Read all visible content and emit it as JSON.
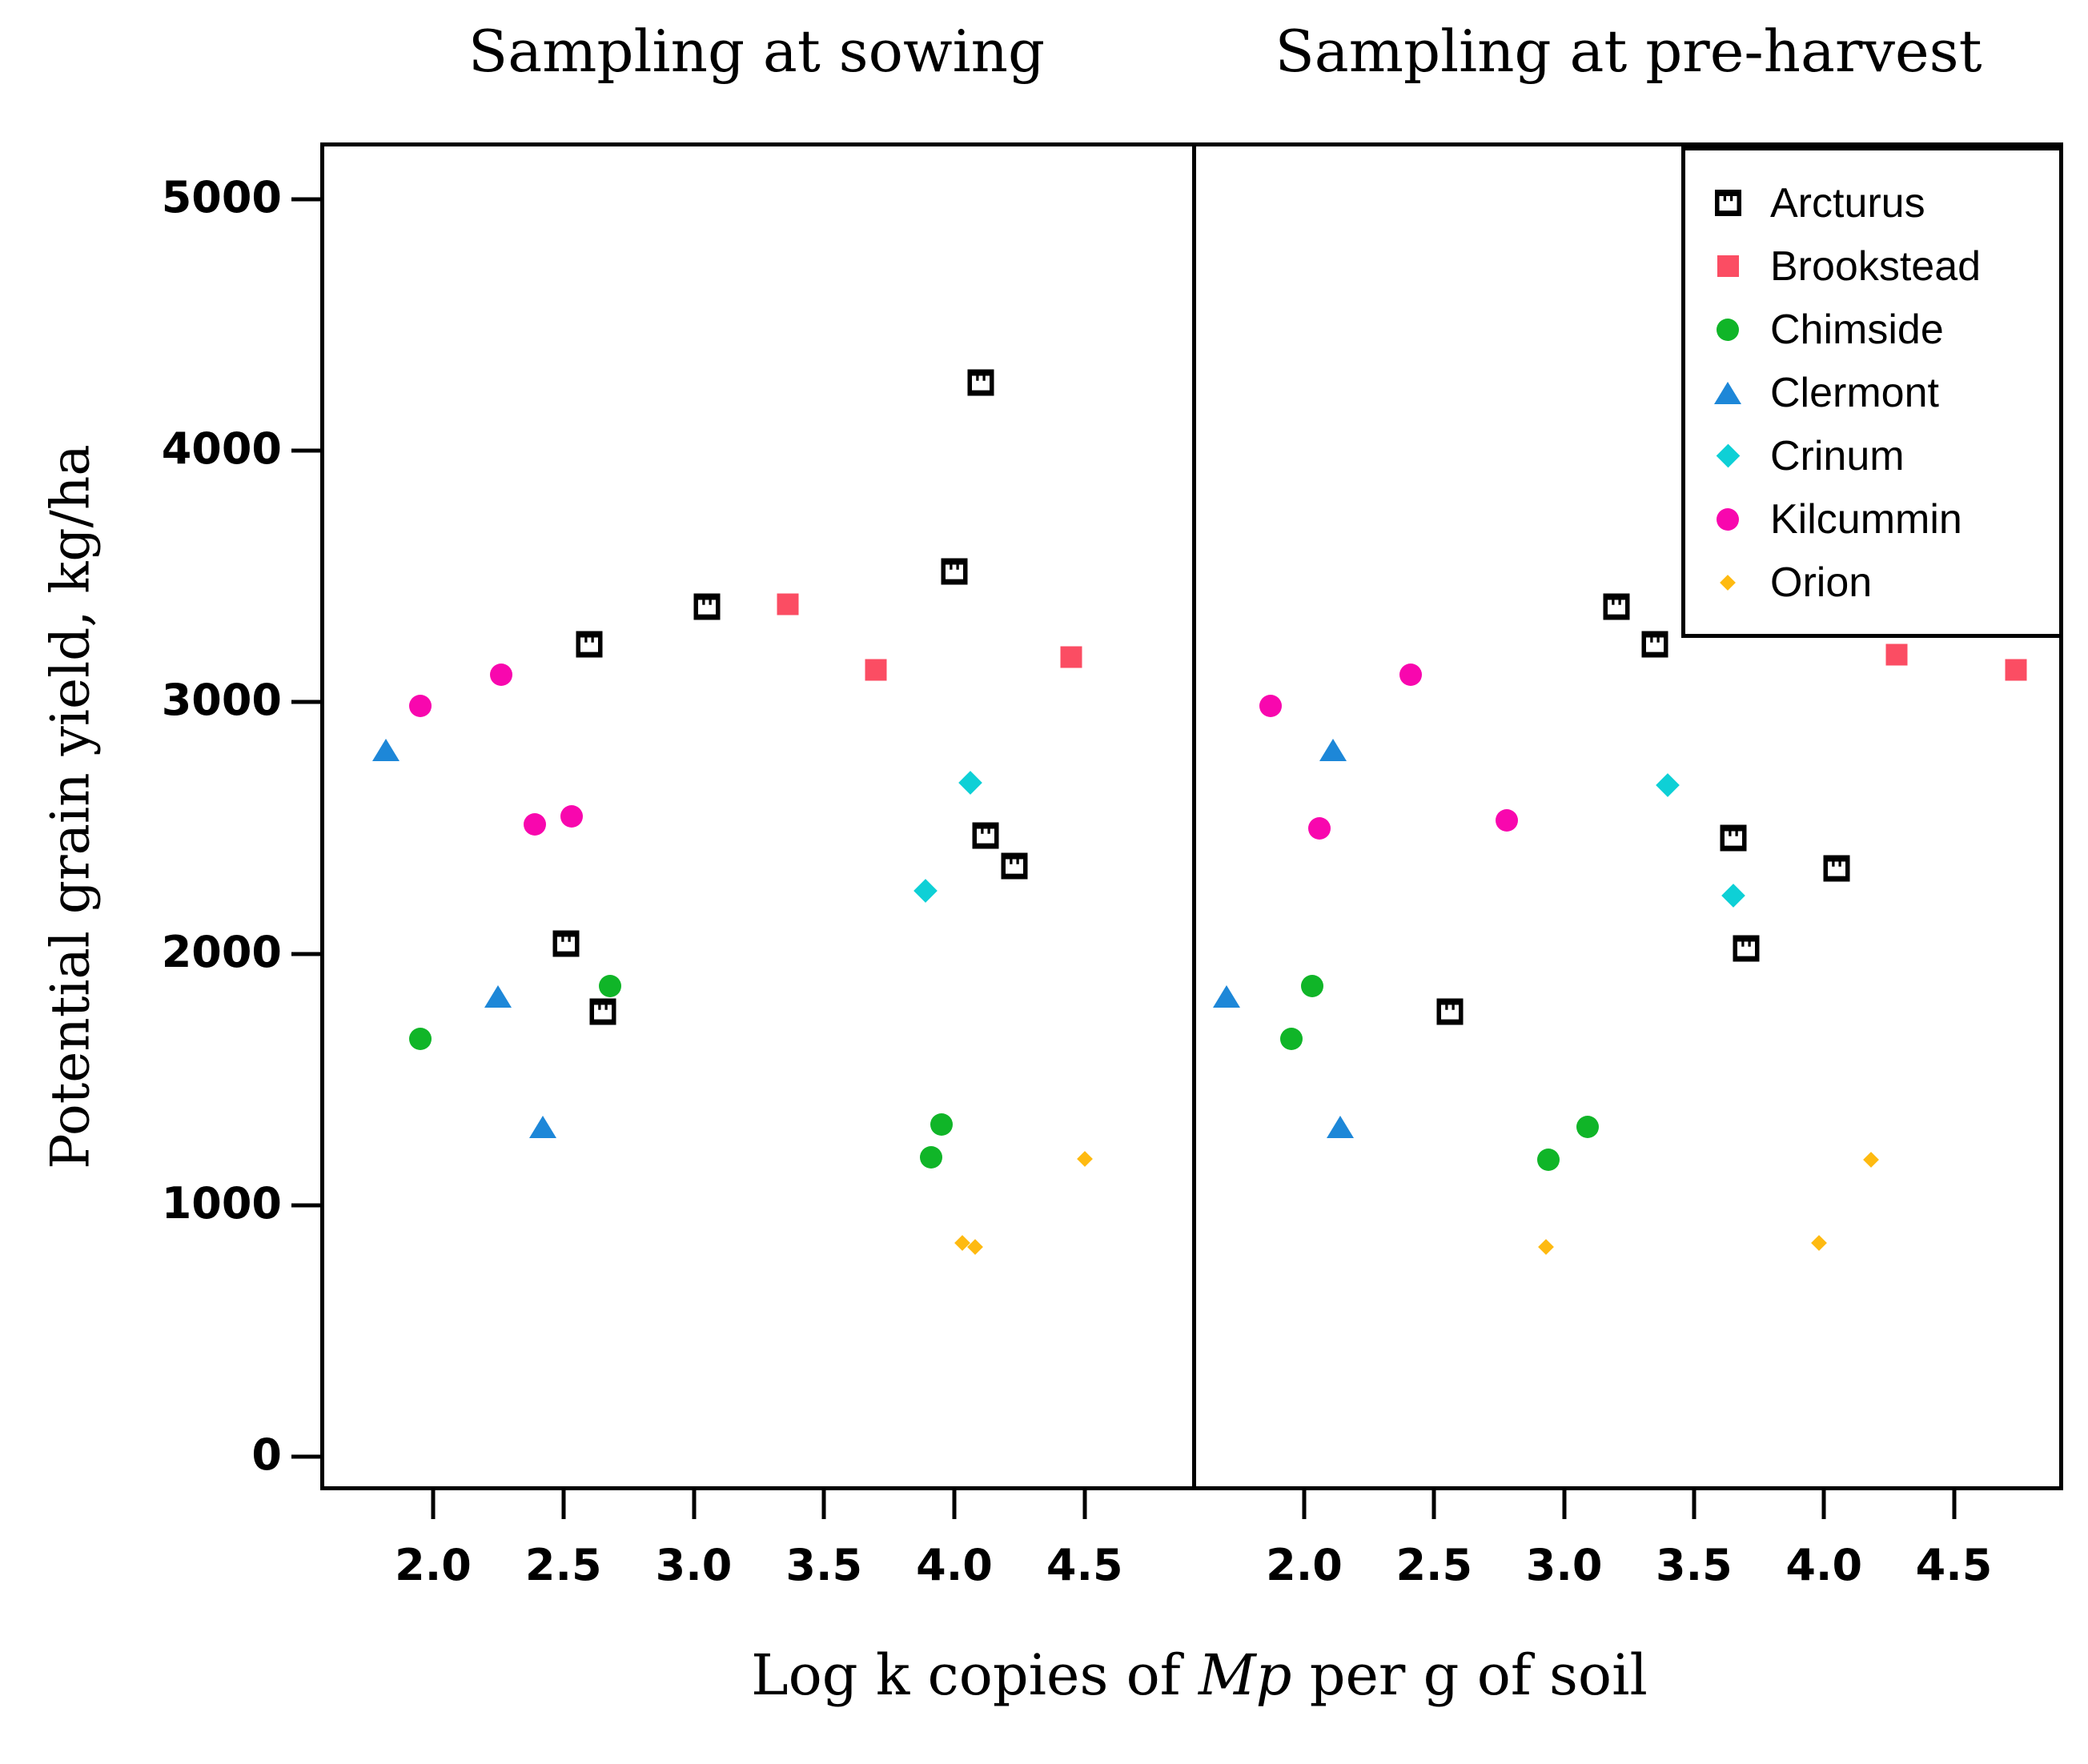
{
  "figure": {
    "panel_titles": [
      "Sampling at sowing",
      "Sampling at pre-harvest"
    ],
    "ylabel": "Potential grain yield, kg/ha",
    "xlabel_parts": {
      "prefix": "Log k copies of ",
      "italic": "Mp",
      "suffix": " per g of soil"
    }
  },
  "chart_data": {
    "type": "scatter",
    "title": "",
    "panels": [
      {
        "title": "Sampling at sowing",
        "key": "sowing"
      },
      {
        "title": "Sampling at pre-harvest",
        "key": "preharvest"
      }
    ],
    "xlabel": "Log k copies of Mp per g of soil",
    "ylabel": "Potential grain yield, kg/ha",
    "x_ticks": [
      "2.0",
      "2.5",
      "3.0",
      "3.5",
      "4.0",
      "4.5"
    ],
    "x_tick_values": [
      2.0,
      2.5,
      3.0,
      3.5,
      4.0,
      4.5
    ],
    "y_ticks": [
      "0",
      "1000",
      "2000",
      "3000",
      "4000",
      "5000"
    ],
    "y_tick_values": [
      0,
      1000,
      2000,
      3000,
      4000,
      5000
    ],
    "x_range": [
      1.57,
      4.92
    ],
    "y_range": [
      -130,
      5230
    ],
    "grid": false,
    "legend_position": "top-right",
    "legend_order": [
      "Arcturus",
      "Brookstead",
      "Chimside",
      "Clermont",
      "Crinum",
      "Kilcummin",
      "Orion"
    ],
    "series": [
      {
        "name": "Arcturus",
        "marker": "patterned-square",
        "color": "#000000",
        "sowing": [
          [
            4.1,
            4270
          ],
          [
            4.0,
            3520
          ],
          [
            3.05,
            3380
          ],
          [
            2.6,
            3230
          ],
          [
            4.12,
            2470
          ],
          [
            4.23,
            2350
          ],
          [
            2.51,
            2040
          ],
          [
            2.65,
            1770
          ]
        ],
        "preharvest": [
          [
            3.2,
            3380
          ],
          [
            3.35,
            3230
          ],
          [
            3.65,
            2460
          ],
          [
            4.05,
            2340
          ],
          [
            3.7,
            2020
          ],
          [
            2.56,
            1770
          ]
        ]
      },
      {
        "name": "Brookstead",
        "marker": "square",
        "color": "#FB4D63",
        "sowing": [
          [
            3.36,
            3390
          ],
          [
            4.45,
            3180
          ],
          [
            3.7,
            3130
          ]
        ],
        "preharvest": [
          [
            4.28,
            3190
          ],
          [
            4.74,
            3130
          ]
        ]
      },
      {
        "name": "Chimside",
        "marker": "circle",
        "color": "#10B528",
        "sowing": [
          [
            2.68,
            1870
          ],
          [
            1.95,
            1660
          ],
          [
            3.95,
            1320
          ],
          [
            3.91,
            1190
          ]
        ],
        "preharvest": [
          [
            2.03,
            1870
          ],
          [
            1.95,
            1660
          ],
          [
            3.09,
            1310
          ],
          [
            2.94,
            1180
          ]
        ]
      },
      {
        "name": "Clermont",
        "marker": "triangle",
        "color": "#1D87D8",
        "sowing": [
          [
            1.82,
            2810
          ],
          [
            2.25,
            1830
          ],
          [
            2.42,
            1310
          ]
        ],
        "preharvest": [
          [
            2.11,
            2810
          ],
          [
            1.7,
            1830
          ],
          [
            2.14,
            1310
          ]
        ]
      },
      {
        "name": "Crinum",
        "marker": "diamond",
        "color": "#0ED0D6",
        "sowing": [
          [
            4.06,
            2680
          ],
          [
            3.89,
            2250
          ]
        ],
        "preharvest": [
          [
            3.4,
            2670
          ],
          [
            3.65,
            2230
          ]
        ]
      },
      {
        "name": "Kilcummin",
        "marker": "circle",
        "color": "#F807AE",
        "sowing": [
          [
            2.26,
            3110
          ],
          [
            1.95,
            2985
          ],
          [
            2.53,
            2545
          ],
          [
            2.39,
            2515
          ]
        ],
        "preharvest": [
          [
            2.41,
            3110
          ],
          [
            1.87,
            2985
          ],
          [
            2.78,
            2530
          ],
          [
            2.06,
            2500
          ]
        ]
      },
      {
        "name": "Orion",
        "marker": "small-diamond",
        "color": "#FEBA11",
        "sowing": [
          [
            4.03,
            850
          ],
          [
            4.08,
            835
          ],
          [
            4.5,
            1185
          ]
        ],
        "preharvest": [
          [
            3.98,
            850
          ],
          [
            2.93,
            835
          ],
          [
            4.18,
            1180
          ]
        ]
      }
    ]
  }
}
